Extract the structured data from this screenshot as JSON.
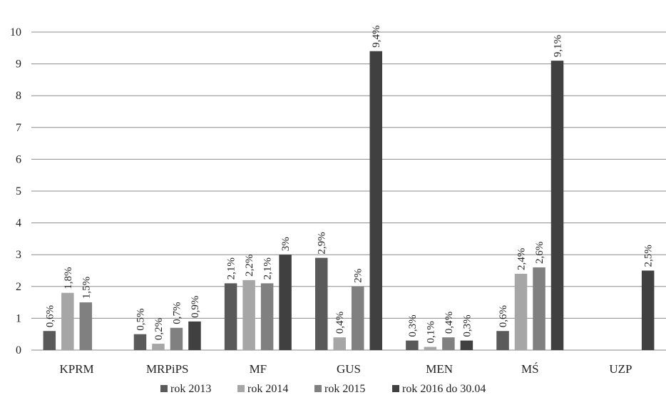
{
  "chart_data": {
    "type": "bar",
    "categories": [
      "KPRM",
      "MRPiPS",
      "MF",
      "GUS",
      "MEN",
      "MŚ",
      "UZP"
    ],
    "series": [
      {
        "name": "rok 2013",
        "color": "#5a5a5a",
        "values": [
          0.6,
          0.5,
          2.1,
          2.9,
          0.3,
          0.6,
          null
        ],
        "labels": [
          "0,6%",
          "0,5%",
          "2,1%",
          "2,9%",
          "0,3%",
          "0,6%",
          null
        ]
      },
      {
        "name": "rok 2014",
        "color": "#a6a6a6",
        "values": [
          1.8,
          0.2,
          2.2,
          0.4,
          0.1,
          2.4,
          null
        ],
        "labels": [
          "1,8%",
          "0,2%",
          "2,2%",
          "0,4%",
          "0,1%",
          "2,4%",
          null
        ]
      },
      {
        "name": "rok 2015",
        "color": "#808080",
        "values": [
          1.5,
          0.7,
          2.1,
          2.0,
          0.4,
          2.6,
          null
        ],
        "labels": [
          "1,5%",
          "0,7%",
          "2,1%",
          "2%",
          "0,4%",
          "2,6%",
          null
        ]
      },
      {
        "name": "rok 2016 do 30.04",
        "color": "#404040",
        "values": [
          null,
          0.9,
          3.0,
          9.4,
          0.3,
          9.1,
          2.5
        ],
        "labels": [
          null,
          "0,9%",
          "3%",
          "9,4%",
          "0,3%",
          "9,1%",
          "2,5%"
        ]
      }
    ],
    "yticks": [
      "0",
      "1",
      "2",
      "3",
      "4",
      "5",
      "6",
      "7",
      "8",
      "9",
      "10"
    ],
    "ylim": [
      0,
      10
    ],
    "grid": true,
    "legend_position": "bottom"
  }
}
